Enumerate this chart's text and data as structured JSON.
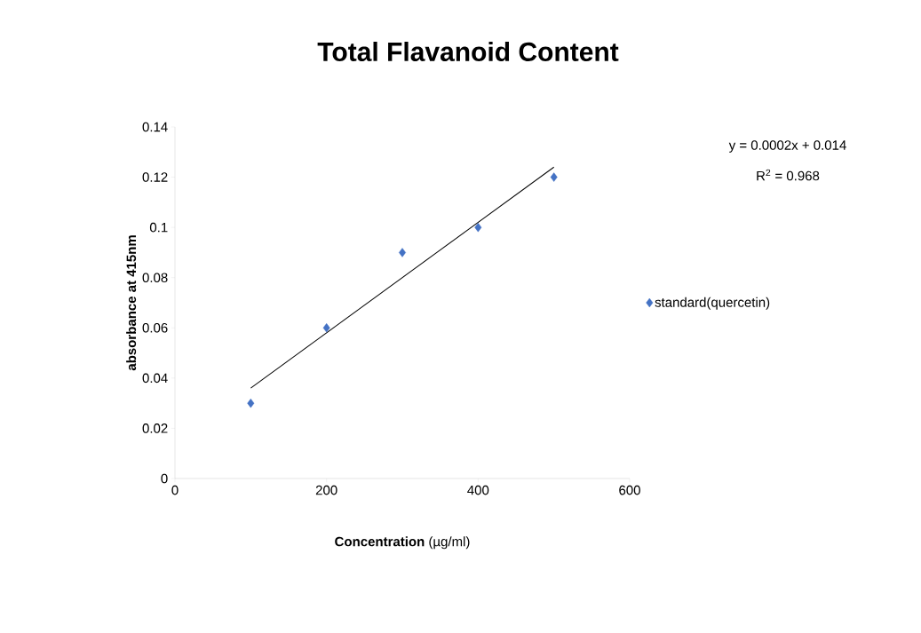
{
  "chart_data": {
    "type": "scatter",
    "title": "Total Flavanoid Content",
    "xlabel": "**Concentration** (µg/ml)",
    "ylabel": "absorbance at 415nm",
    "annotations": [
      "y = 0.0002x + 0.014",
      "R$^{2}$ = 0.968"
    ],
    "series": [
      {
        "name": "standard(quercetin)",
        "color": "#4472c4",
        "x": [
          100,
          200,
          300,
          400,
          500
        ],
        "values": [
          0.03,
          0.06,
          0.09,
          0.1,
          0.12
        ],
        "marker": "diamond"
      },
      {
        "type": "line",
        "color": "#000000",
        "x": [
          100,
          500
        ],
        "values": [
          0.036,
          0.124
        ],
        "marker": "none",
        "line_style": "solid"
      }
    ],
    "xlim": [
      0,
      600
    ],
    "ylim": [
      0,
      0.14
    ],
    "xticks": [
      0,
      200,
      400,
      600
    ],
    "yticks": [
      0,
      0.02,
      0.04,
      0.06,
      0.08,
      0.1,
      0.12,
      0.14
    ],
    "grid": false,
    "legend": "right"
  }
}
